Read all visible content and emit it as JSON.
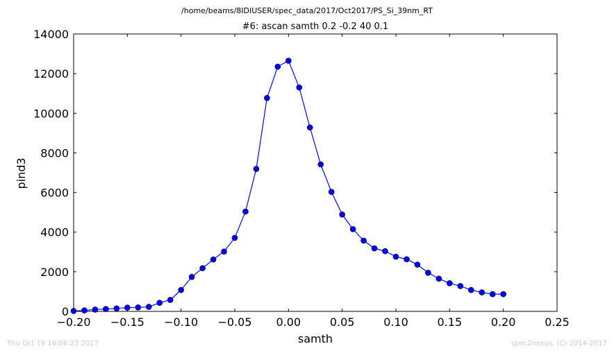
{
  "header": {
    "path": "/home/beams/8IDIUSER/spec_data/2017/Oct2017/PS_Si_39nm_RT"
  },
  "footer": {
    "timestamp": "Thu Oct 19 16:08:23 2017",
    "credit": "spec2nexus, (C) 2014-2017"
  },
  "chart_data": {
    "type": "line",
    "title": "#6: ascan  samth 0.2 -0.2  40 0.1",
    "xlabel": "samth",
    "ylabel": "pind3",
    "xlim": [
      -0.2,
      0.25
    ],
    "ylim": [
      0,
      14000
    ],
    "xticks": [
      "−0.20",
      "−0.15",
      "−0.10",
      "−0.05",
      "0.00",
      "0.05",
      "0.10",
      "0.15",
      "0.20",
      "0.25"
    ],
    "xtick_values": [
      -0.2,
      -0.15,
      -0.1,
      -0.05,
      0.0,
      0.05,
      0.1,
      0.15,
      0.2,
      0.25
    ],
    "yticks": [
      "0",
      "2000",
      "4000",
      "6000",
      "8000",
      "10000",
      "12000",
      "14000"
    ],
    "ytick_values": [
      0,
      2000,
      4000,
      6000,
      8000,
      10000,
      12000,
      14000
    ],
    "grid": false,
    "series": [
      {
        "color": "#0000ff",
        "marker": "circle",
        "x": [
          -0.2,
          -0.19,
          -0.18,
          -0.17,
          -0.16,
          -0.15,
          -0.14,
          -0.13,
          -0.12,
          -0.11,
          -0.1,
          -0.09,
          -0.08,
          -0.07,
          -0.06,
          -0.05,
          -0.04,
          -0.03,
          -0.02,
          -0.01,
          0.0,
          0.01,
          0.02,
          0.03,
          0.04,
          0.05,
          0.06,
          0.07,
          0.08,
          0.09,
          0.1,
          0.11,
          0.12,
          0.13,
          0.14,
          0.15,
          0.16,
          0.17,
          0.18,
          0.19,
          0.2
        ],
        "y": [
          20,
          50,
          90,
          120,
          150,
          190,
          200,
          230,
          430,
          580,
          1080,
          1740,
          2180,
          2620,
          3020,
          3710,
          5040,
          7190,
          10770,
          12350,
          12650,
          11300,
          9280,
          7420,
          6030,
          4890,
          4150,
          3570,
          3180,
          3040,
          2760,
          2630,
          2360,
          1950,
          1650,
          1420,
          1280,
          1080,
          960,
          870,
          870
        ]
      }
    ]
  }
}
